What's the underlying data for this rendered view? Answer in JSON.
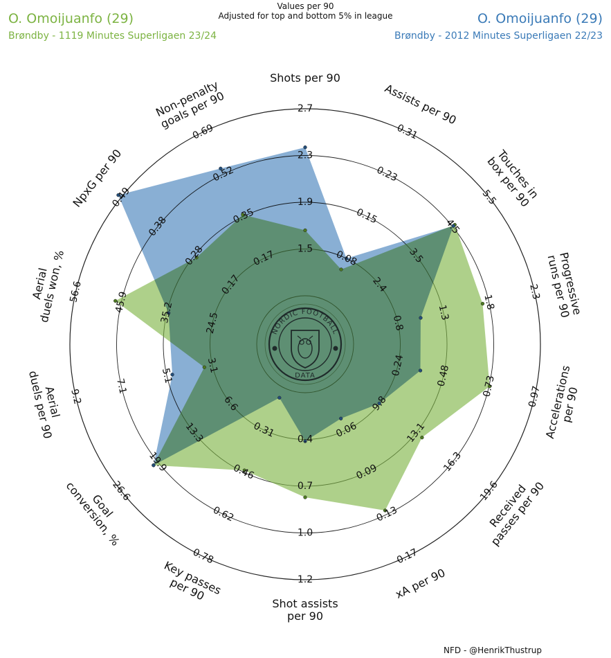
{
  "header": {
    "subtitle1": "Values per 90",
    "subtitle2": "Adjusted for top and bottom 5% in league"
  },
  "player_left": {
    "name": "O. Omoijuanfo (29)",
    "meta": "Brøndby - 1119 Minutes Superligaen 23/24",
    "color": "#7cb342"
  },
  "player_right": {
    "name": "O. Omoijuanfo (29)",
    "meta": "Brøndby - 2012 Minutes Superligaen 22/23",
    "color": "#3a7ab7"
  },
  "logo": {
    "text_top": "NORDIC FOOTBALL",
    "text_bottom": "DATA",
    "icon": "owl-shield-icon"
  },
  "footer": "NFD - @HenrikThustrup",
  "chart_data": {
    "type": "radar",
    "axes": [
      {
        "label": "Shots per 90",
        "ticks": [
          "1.5",
          "1.9",
          "2.3",
          "2.7"
        ]
      },
      {
        "label": "Assists per 90",
        "ticks": [
          "0.08",
          "0.15",
          "0.23",
          "0.31"
        ]
      },
      {
        "label": "Touches in box per 90",
        "ticks": [
          "2.4",
          "3.5",
          "4.5",
          "5.5"
        ]
      },
      {
        "label": "Progressive runs per 90",
        "ticks": [
          "0.8",
          "1.3",
          "1.8",
          "2.3"
        ]
      },
      {
        "label": "Accelerations per 90",
        "ticks": [
          "0.24",
          "0.48",
          "0.73",
          "0.97"
        ]
      },
      {
        "label": "Received passes per 90",
        "ticks": [
          "9.8",
          "13.1",
          "16.3",
          "19.6"
        ]
      },
      {
        "label": "xA per 90",
        "ticks": [
          "0.06",
          "0.09",
          "0.13",
          "0.17"
        ]
      },
      {
        "label": "Shot assists per 90",
        "ticks": [
          "0.4",
          "0.7",
          "1.0",
          "1.2"
        ]
      },
      {
        "label": "Key passes per 90",
        "ticks": [
          "0.31",
          "0.46",
          "0.62",
          "0.78"
        ]
      },
      {
        "label": "Goal conversion, %",
        "ticks": [
          "6.6",
          "13.3",
          "19.9",
          "26.6"
        ]
      },
      {
        "label": "Aerial duels per 90",
        "ticks": [
          "3.1",
          "5.1",
          "7.1",
          "9.2"
        ]
      },
      {
        "label": "Aerial duels won, %",
        "ticks": [
          "24.5",
          "35.2",
          "45.9",
          "56.6"
        ]
      },
      {
        "label": "NpxG per 90",
        "ticks": [
          "0.17",
          "0.28",
          "0.38",
          "0.49"
        ]
      },
      {
        "label": "Non-penalty goals per 90",
        "ticks": [
          "0.17",
          "0.35",
          "0.52",
          "0.69"
        ]
      }
    ],
    "ring_fractions": [
      0.25,
      0.5,
      0.75,
      1.0
    ],
    "series": [
      {
        "name": "O. Omoijuanfo (29) 23/24",
        "color": "#7cb342",
        "values": [
          1.66,
          0.06,
          4.53,
          1.73,
          0.73,
          13.6,
          0.13,
          0.73,
          0.46,
          20.7,
          3.46,
          47.3,
          0.27,
          0.35
        ]
      },
      {
        "name": "O. Omoijuanfo (29) 22/23",
        "color": "#3a7ab7",
        "values": [
          2.37,
          0.08,
          4.49,
          1.05,
          0.36,
          9.78,
          0.05,
          0.41,
          0.19,
          20.7,
          4.89,
          34.8,
          0.5,
          0.54
        ]
      }
    ],
    "overlap_color": "#5b9a94",
    "center": {
      "label": "NORDIC FOOTBALL DATA"
    }
  }
}
